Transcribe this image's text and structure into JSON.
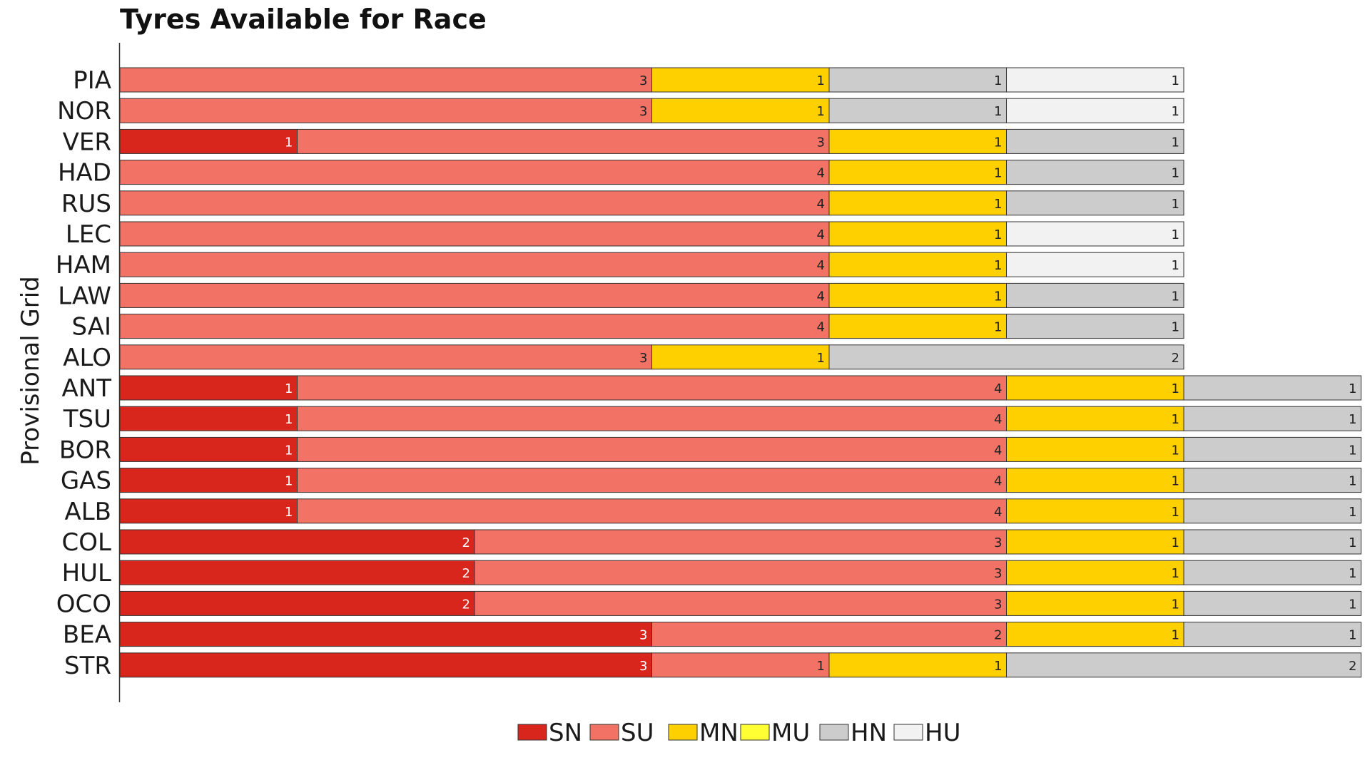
{
  "chart_data": {
    "type": "bar",
    "orientation": "horizontal",
    "stacked": true,
    "title": "Tyres Available for Race",
    "ylabel": "Provisional Grid",
    "xlabel": "",
    "grid": false,
    "legend_placement": "bottom-center",
    "legend": [
      {
        "key": "SN",
        "label": "SN",
        "color": "#d9261c"
      },
      {
        "key": "SU",
        "label": "SU",
        "color": "#f27266"
      },
      {
        "key": "MN",
        "label": "MN",
        "color": "#ffd000"
      },
      {
        "key": "MU",
        "label": "MU",
        "color": "#ffff33"
      },
      {
        "key": "HN",
        "label": "HN",
        "color": "#cccccc"
      },
      {
        "key": "HU",
        "label": "HU",
        "color": "#f2f2f2"
      }
    ],
    "label_colors": {
      "dark": "#222222",
      "light": "#ffffff"
    },
    "rows": [
      {
        "driver": "PIA",
        "segments": [
          {
            "type": "SU",
            "value": 3
          },
          {
            "type": "MN",
            "value": 1
          },
          {
            "type": "HN",
            "value": 1
          },
          {
            "type": "HU",
            "value": 1
          }
        ]
      },
      {
        "driver": "NOR",
        "segments": [
          {
            "type": "SU",
            "value": 3
          },
          {
            "type": "MN",
            "value": 1
          },
          {
            "type": "HN",
            "value": 1
          },
          {
            "type": "HU",
            "value": 1
          }
        ]
      },
      {
        "driver": "VER",
        "segments": [
          {
            "type": "SN",
            "value": 1
          },
          {
            "type": "SU",
            "value": 3
          },
          {
            "type": "MN",
            "value": 1
          },
          {
            "type": "HN",
            "value": 1
          }
        ]
      },
      {
        "driver": "HAD",
        "segments": [
          {
            "type": "SU",
            "value": 4
          },
          {
            "type": "MN",
            "value": 1
          },
          {
            "type": "HN",
            "value": 1
          }
        ]
      },
      {
        "driver": "RUS",
        "segments": [
          {
            "type": "SU",
            "value": 4
          },
          {
            "type": "MN",
            "value": 1
          },
          {
            "type": "HN",
            "value": 1
          }
        ]
      },
      {
        "driver": "LEC",
        "segments": [
          {
            "type": "SU",
            "value": 4
          },
          {
            "type": "MN",
            "value": 1
          },
          {
            "type": "HU",
            "value": 1
          }
        ]
      },
      {
        "driver": "HAM",
        "segments": [
          {
            "type": "SU",
            "value": 4
          },
          {
            "type": "MN",
            "value": 1
          },
          {
            "type": "HU",
            "value": 1
          }
        ]
      },
      {
        "driver": "LAW",
        "segments": [
          {
            "type": "SU",
            "value": 4
          },
          {
            "type": "MN",
            "value": 1
          },
          {
            "type": "HN",
            "value": 1
          }
        ]
      },
      {
        "driver": "SAI",
        "segments": [
          {
            "type": "SU",
            "value": 4
          },
          {
            "type": "MN",
            "value": 1
          },
          {
            "type": "HN",
            "value": 1
          }
        ]
      },
      {
        "driver": "ALO",
        "segments": [
          {
            "type": "SU",
            "value": 3
          },
          {
            "type": "MN",
            "value": 1
          },
          {
            "type": "HN",
            "value": 2
          }
        ]
      },
      {
        "driver": "ANT",
        "segments": [
          {
            "type": "SN",
            "value": 1
          },
          {
            "type": "SU",
            "value": 4
          },
          {
            "type": "MN",
            "value": 1
          },
          {
            "type": "HN",
            "value": 1
          }
        ]
      },
      {
        "driver": "TSU",
        "segments": [
          {
            "type": "SN",
            "value": 1
          },
          {
            "type": "SU",
            "value": 4
          },
          {
            "type": "MN",
            "value": 1
          },
          {
            "type": "HN",
            "value": 1
          }
        ]
      },
      {
        "driver": "BOR",
        "segments": [
          {
            "type": "SN",
            "value": 1
          },
          {
            "type": "SU",
            "value": 4
          },
          {
            "type": "MN",
            "value": 1
          },
          {
            "type": "HN",
            "value": 1
          }
        ]
      },
      {
        "driver": "GAS",
        "segments": [
          {
            "type": "SN",
            "value": 1
          },
          {
            "type": "SU",
            "value": 4
          },
          {
            "type": "MN",
            "value": 1
          },
          {
            "type": "HN",
            "value": 1
          }
        ]
      },
      {
        "driver": "ALB",
        "segments": [
          {
            "type": "SN",
            "value": 1
          },
          {
            "type": "SU",
            "value": 4
          },
          {
            "type": "MN",
            "value": 1
          },
          {
            "type": "HN",
            "value": 1
          }
        ]
      },
      {
        "driver": "COL",
        "segments": [
          {
            "type": "SN",
            "value": 2
          },
          {
            "type": "SU",
            "value": 3
          },
          {
            "type": "MN",
            "value": 1
          },
          {
            "type": "HN",
            "value": 1
          }
        ]
      },
      {
        "driver": "HUL",
        "segments": [
          {
            "type": "SN",
            "value": 2
          },
          {
            "type": "SU",
            "value": 3
          },
          {
            "type": "MN",
            "value": 1
          },
          {
            "type": "HN",
            "value": 1
          }
        ]
      },
      {
        "driver": "OCO",
        "segments": [
          {
            "type": "SN",
            "value": 2
          },
          {
            "type": "SU",
            "value": 3
          },
          {
            "type": "MN",
            "value": 1
          },
          {
            "type": "HN",
            "value": 1
          }
        ]
      },
      {
        "driver": "BEA",
        "segments": [
          {
            "type": "SN",
            "value": 3
          },
          {
            "type": "SU",
            "value": 2
          },
          {
            "type": "MN",
            "value": 1
          },
          {
            "type": "HN",
            "value": 1
          }
        ]
      },
      {
        "driver": "STR",
        "segments": [
          {
            "type": "SN",
            "value": 3
          },
          {
            "type": "SU",
            "value": 1
          },
          {
            "type": "MN",
            "value": 1
          },
          {
            "type": "HN",
            "value": 2
          }
        ]
      }
    ]
  }
}
